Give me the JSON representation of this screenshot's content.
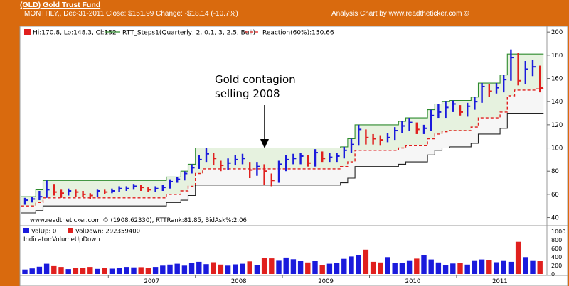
{
  "header": {
    "title": "(GLD) Gold Trust Fund",
    "subtitle": "MONTHLY,, Dec-31-2011  Close: $151.99  Change: -$18.14  (-10.7%)",
    "credit": "Analysis Chart by www.readtheticker.com ©"
  },
  "colors": {
    "background": "#d96a0e",
    "up": "#1a1adc",
    "down": "#e0201e",
    "upper_band": "#2e8b2e",
    "band_fill": "#e6f2df",
    "reaction": "#e0201e",
    "lower_band": "#222222"
  },
  "chart_data": [
    {
      "type": "ohlc",
      "legend": {
        "price": "Hi:170.8, Lo:148.3, Cl:152",
        "steps": "RTT_Steps1(Quarterly, 2, 0.1, 3, 2.5, Bull)",
        "reaction": "Reaction(60%):150.66"
      },
      "annotation": [
        "Gold contagion",
        "selling 2008"
      ],
      "footer": "www.readtheticker.com © (1908.62330), RTTRank:81.85, BidAsk%:2.06",
      "y_ticks": [
        40,
        60,
        80,
        100,
        120,
        140,
        160,
        180,
        200
      ],
      "ylim": [
        33,
        205
      ],
      "x_ticks": [
        "2007",
        "2008",
        "2009",
        "2010",
        "2011"
      ],
      "start_year": 2006,
      "start_month": 0,
      "close": [
        55,
        56,
        58,
        64,
        62,
        61,
        63,
        62,
        60,
        59,
        63,
        62,
        63,
        65,
        65,
        67,
        66,
        64,
        65,
        66,
        71,
        73,
        78,
        83,
        90,
        95,
        91,
        85,
        87,
        90,
        91,
        81,
        84,
        80,
        72,
        86,
        90,
        91,
        93,
        87,
        96,
        91,
        92,
        93,
        98,
        103,
        116,
        109,
        108,
        107,
        109,
        115,
        119,
        122,
        116,
        117,
        128,
        131,
        135,
        138,
        131,
        136,
        140,
        153,
        149,
        152,
        159,
        178,
        158,
        168,
        170,
        152
      ],
      "high": [
        57,
        58,
        63,
        72,
        69,
        64,
        65,
        64,
        63,
        61,
        64,
        64,
        65,
        67,
        67,
        69,
        68,
        66,
        67,
        68,
        73,
        75,
        80,
        86,
        94,
        100,
        96,
        89,
        91,
        94,
        95,
        88,
        88,
        86,
        78,
        89,
        94,
        95,
        96,
        94,
        99,
        97,
        96,
        96,
        101,
        108,
        120,
        116,
        112,
        111,
        113,
        118,
        123,
        126,
        122,
        120,
        133,
        138,
        140,
        141,
        137,
        139,
        144,
        156,
        155,
        156,
        163,
        185,
        182,
        175,
        176,
        171
      ],
      "low": [
        51,
        53,
        55,
        57,
        59,
        57,
        59,
        58,
        58,
        56,
        58,
        60,
        61,
        62,
        63,
        64,
        63,
        62,
        62,
        63,
        65,
        70,
        72,
        78,
        82,
        88,
        85,
        80,
        81,
        85,
        86,
        74,
        76,
        68,
        67,
        70,
        80,
        86,
        86,
        84,
        84,
        88,
        88,
        88,
        91,
        96,
        102,
        103,
        103,
        102,
        105,
        107,
        113,
        115,
        112,
        112,
        115,
        126,
        126,
        131,
        128,
        127,
        133,
        139,
        144,
        147,
        148,
        158,
        154,
        155,
        162,
        148
      ],
      "upper_band": [
        58,
        58,
        64,
        72,
        72,
        72,
        72,
        72,
        72,
        72,
        72,
        72,
        72,
        72,
        72,
        72,
        72,
        72,
        72,
        72,
        75,
        75,
        80,
        86,
        100,
        100,
        100,
        100,
        100,
        100,
        100,
        100,
        100,
        100,
        100,
        100,
        100,
        100,
        100,
        100,
        100,
        100,
        100,
        100,
        101,
        108,
        120,
        120,
        120,
        120,
        120,
        120,
        123,
        126,
        126,
        126,
        133,
        138,
        140,
        141,
        141,
        141,
        144,
        156,
        156,
        156,
        163,
        181,
        181,
        181,
        181,
        181
      ],
      "reaction": [
        50,
        50,
        53,
        57,
        57,
        57,
        57,
        57,
        57,
        57,
        57,
        57,
        57,
        57,
        57,
        57,
        57,
        57,
        57,
        57,
        60,
        60,
        63,
        67,
        78,
        82,
        82,
        82,
        82,
        82,
        82,
        82,
        82,
        82,
        82,
        82,
        82,
        82,
        82,
        82,
        82,
        82,
        82,
        82,
        84,
        88,
        98,
        98,
        98,
        98,
        98,
        98,
        100,
        102,
        102,
        102,
        108,
        112,
        114,
        115,
        115,
        115,
        118,
        126,
        126,
        126,
        131,
        145,
        150,
        150,
        150,
        151
      ],
      "lower_band": [
        44,
        44,
        46,
        50,
        50,
        50,
        50,
        50,
        50,
        50,
        50,
        50,
        50,
        50,
        50,
        50,
        50,
        50,
        50,
        50,
        53,
        53,
        55,
        59,
        68,
        68,
        68,
        68,
        68,
        68,
        68,
        68,
        68,
        68,
        68,
        68,
        68,
        68,
        68,
        68,
        68,
        68,
        68,
        68,
        70,
        74,
        84,
        84,
        84,
        84,
        84,
        84,
        86,
        88,
        88,
        88,
        94,
        98,
        100,
        101,
        101,
        101,
        104,
        112,
        112,
        112,
        117,
        130,
        130,
        130,
        130,
        130
      ]
    },
    {
      "type": "bar",
      "legend": {
        "up": "VolUp: 0",
        "down": "VolDown: 292359400"
      },
      "indicator": "Indicator:VolumeUpDown",
      "y_ticks": [
        0,
        200,
        400,
        600,
        800,
        1000
      ],
      "ylim": [
        0,
        1000
      ],
      "values": [
        105,
        130,
        170,
        240,
        185,
        165,
        115,
        135,
        145,
        165,
        120,
        150,
        125,
        150,
        165,
        155,
        160,
        145,
        165,
        195,
        220,
        240,
        195,
        265,
        285,
        230,
        275,
        220,
        195,
        225,
        240,
        295,
        200,
        370,
        365,
        310,
        385,
        345,
        300,
        270,
        300,
        210,
        240,
        255,
        355,
        410,
        450,
        570,
        285,
        270,
        395,
        250,
        250,
        305,
        360,
        445,
        340,
        270,
        215,
        245,
        265,
        220,
        305,
        340,
        325,
        275,
        305,
        285,
        755,
        395,
        305,
        300
      ]
    }
  ]
}
